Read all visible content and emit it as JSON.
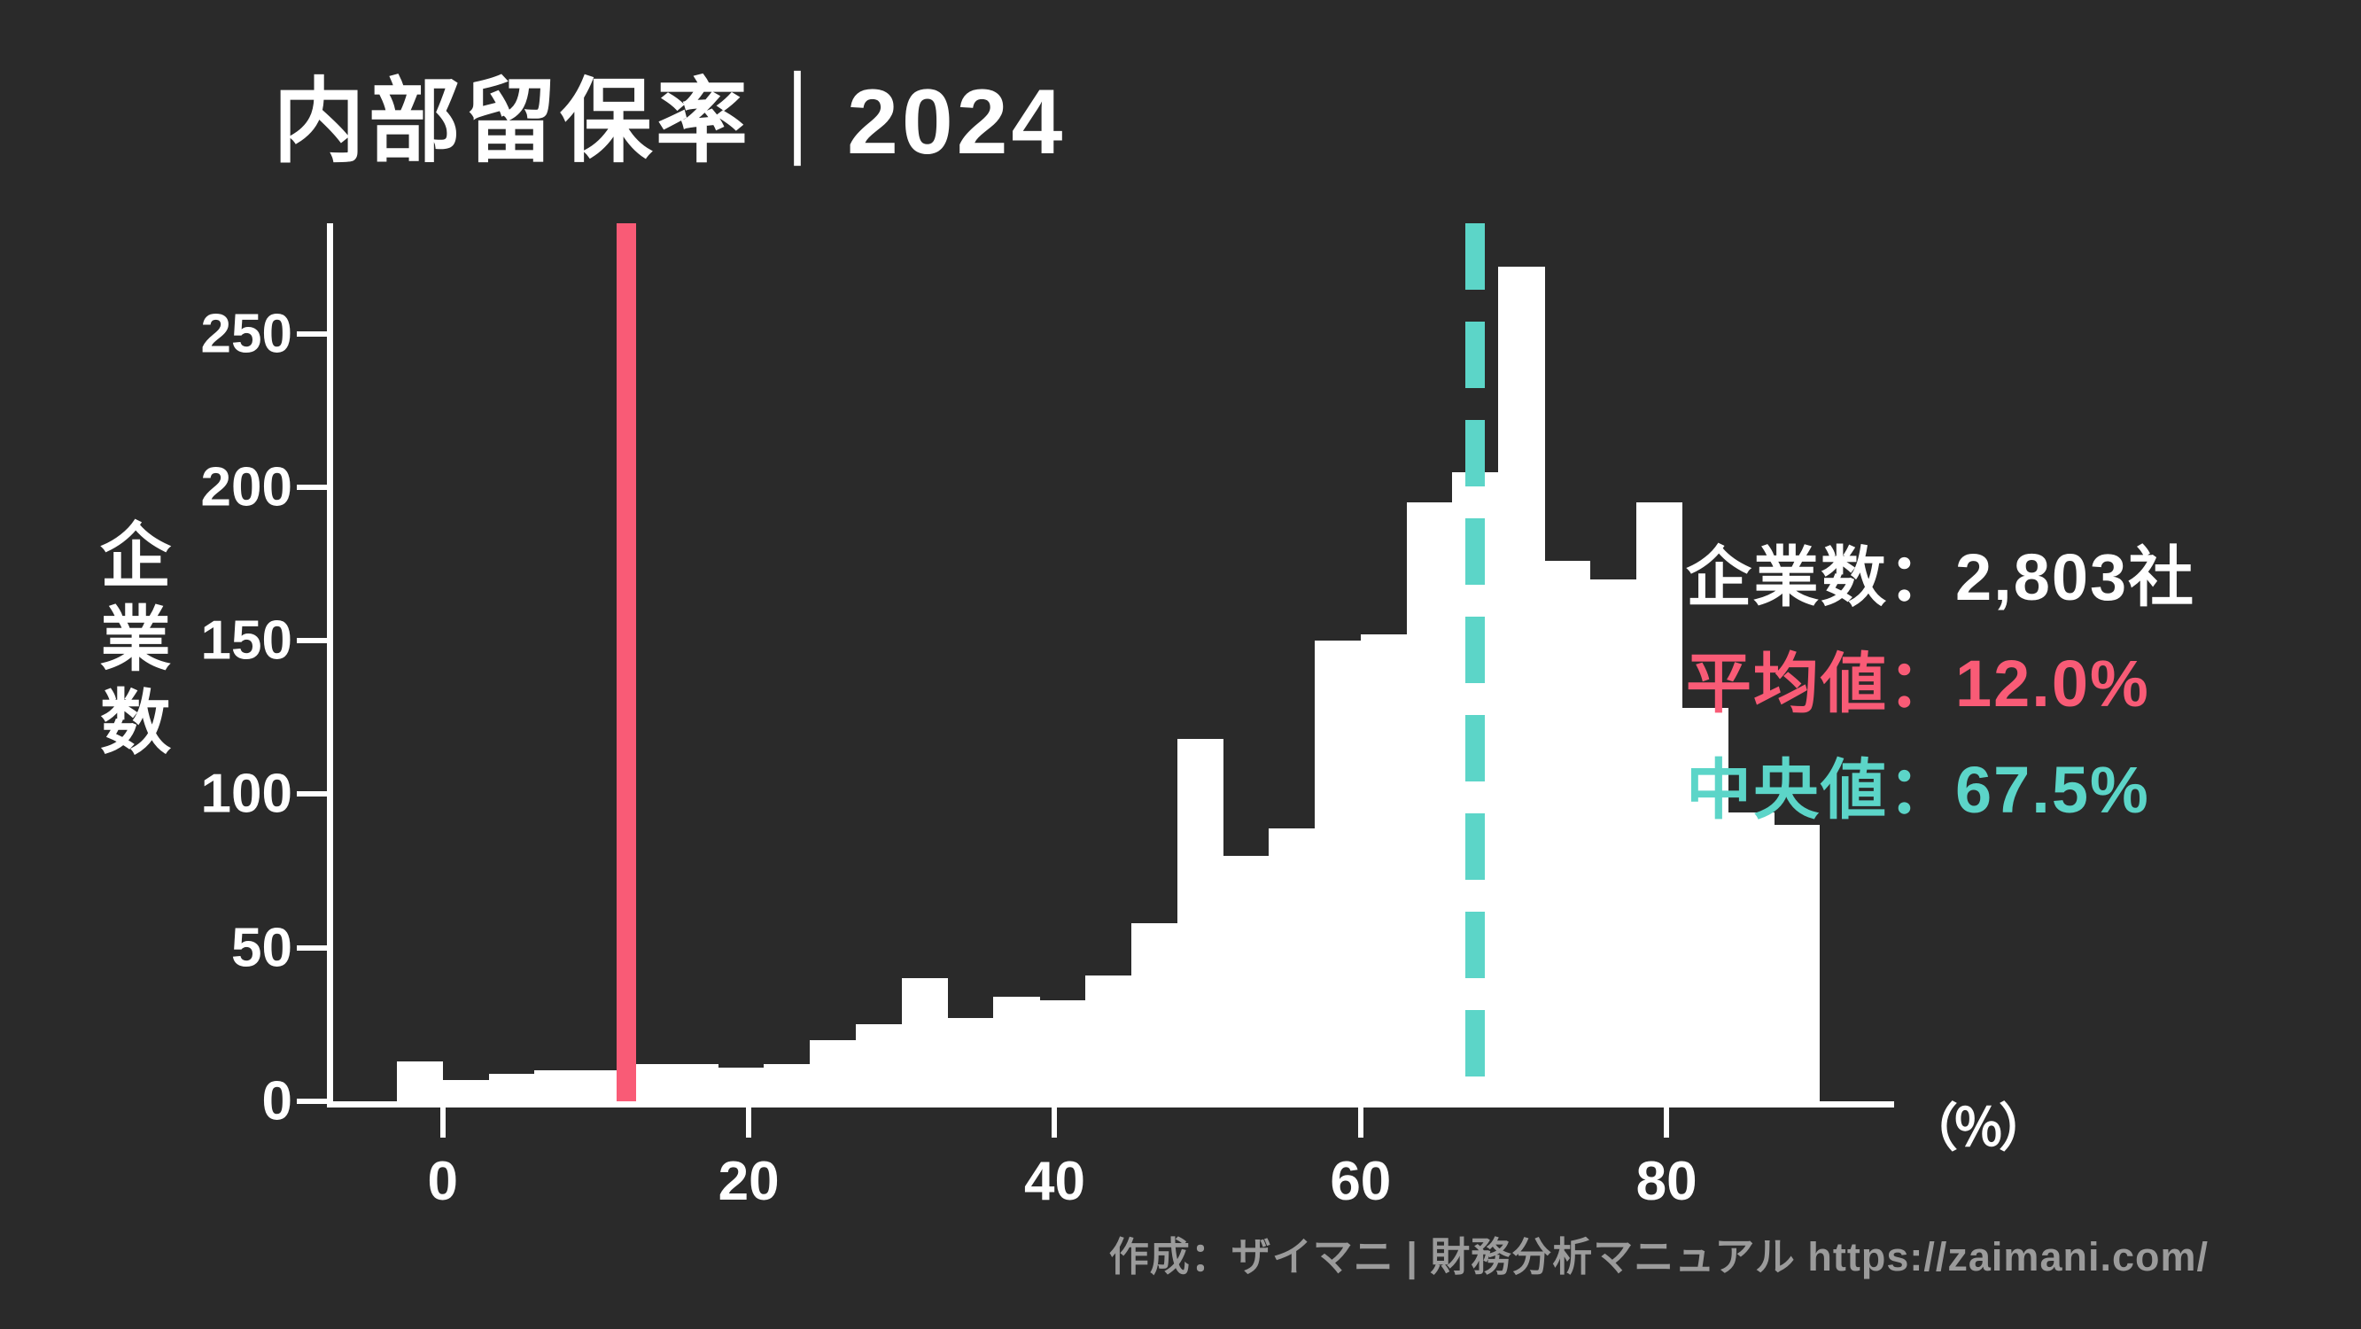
{
  "title": "内部留保率｜2024",
  "y_axis_label": "企業数",
  "x_unit_label": "（％）",
  "legend": {
    "company_count": {
      "label": "企業数",
      "separator": "：",
      "value": "2,803社"
    },
    "mean": {
      "label": "平均値",
      "separator": "：",
      "value": "12.0%"
    },
    "median": {
      "label": "中央値",
      "separator": "：",
      "value": "67.5%"
    }
  },
  "attribution": "作成：ザイマニ | 財務分析マニュアル https://zaimani.com/",
  "colors": {
    "background": "#2a2a2a",
    "bar": "#ffffff",
    "axis": "#ffffff",
    "text": "#ffffff",
    "mean": "#f95b76",
    "median": "#5cd5c8",
    "attribution": "#9b9b9b"
  },
  "chart_data": {
    "type": "bar",
    "subtype": "histogram",
    "title": "内部留保率｜2024",
    "xlabel": "（％）",
    "ylabel": "企業数",
    "bin_width": 3,
    "bin_edges": [
      -3,
      0,
      3,
      6,
      9,
      12,
      15,
      18,
      21,
      24,
      27,
      30,
      33,
      36,
      39,
      42,
      45,
      48,
      51,
      54,
      57,
      60,
      63,
      66,
      69,
      72,
      75,
      78,
      81,
      84,
      87,
      90
    ],
    "values": [
      13,
      7,
      9,
      10,
      10,
      12,
      12,
      11,
      12,
      20,
      25,
      40,
      27,
      34,
      33,
      41,
      58,
      118,
      80,
      89,
      150,
      152,
      195,
      205,
      272,
      176,
      170,
      195,
      128,
      94,
      90
    ],
    "x_ticks": [
      0,
      20,
      40,
      60,
      80
    ],
    "y_ticks": [
      0,
      50,
      100,
      150,
      200,
      250
    ],
    "xlim": [
      -7.4,
      94.7
    ],
    "ylim": [
      0,
      286
    ],
    "grid": false,
    "legend_position": "right",
    "mean_line": {
      "value": 12.0,
      "style": "solid"
    },
    "median_line": {
      "value": 67.5,
      "style": "dashed"
    }
  }
}
